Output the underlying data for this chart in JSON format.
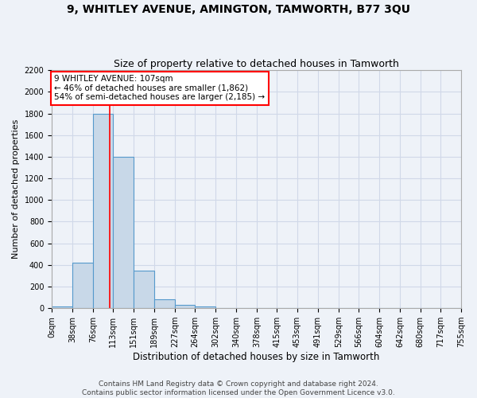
{
  "title": "9, WHITLEY AVENUE, AMINGTON, TAMWORTH, B77 3QU",
  "subtitle": "Size of property relative to detached houses in Tamworth",
  "xlabel": "Distribution of detached houses by size in Tamworth",
  "ylabel": "Number of detached properties",
  "bin_edges": [
    0,
    38,
    76,
    113,
    151,
    189,
    227,
    264,
    302,
    340,
    378,
    415,
    453,
    491,
    529,
    566,
    604,
    642,
    680,
    717,
    755
  ],
  "bar_heights": [
    15,
    420,
    1800,
    1400,
    350,
    80,
    30,
    15,
    0,
    0,
    0,
    0,
    0,
    0,
    0,
    0,
    0,
    0,
    0,
    0
  ],
  "bar_color": "#c8d8e8",
  "bar_edge_color": "#5599cc",
  "grid_color": "#d0d8e8",
  "background_color": "#eef2f8",
  "vline_x": 107,
  "vline_color": "red",
  "annotation_text": "9 WHITLEY AVENUE: 107sqm\n← 46% of detached houses are smaller (1,862)\n54% of semi-detached houses are larger (2,185) →",
  "annotation_box_color": "white",
  "annotation_box_edge": "red",
  "ylim": [
    0,
    2200
  ],
  "yticks": [
    0,
    200,
    400,
    600,
    800,
    1000,
    1200,
    1400,
    1600,
    1800,
    2000,
    2200
  ],
  "footer_line1": "Contains HM Land Registry data © Crown copyright and database right 2024.",
  "footer_line2": "Contains public sector information licensed under the Open Government Licence v3.0.",
  "title_fontsize": 10,
  "subtitle_fontsize": 9,
  "tick_label_fontsize": 7,
  "ylabel_fontsize": 8,
  "xlabel_fontsize": 8.5,
  "footer_fontsize": 6.5,
  "annotation_fontsize": 7.5
}
